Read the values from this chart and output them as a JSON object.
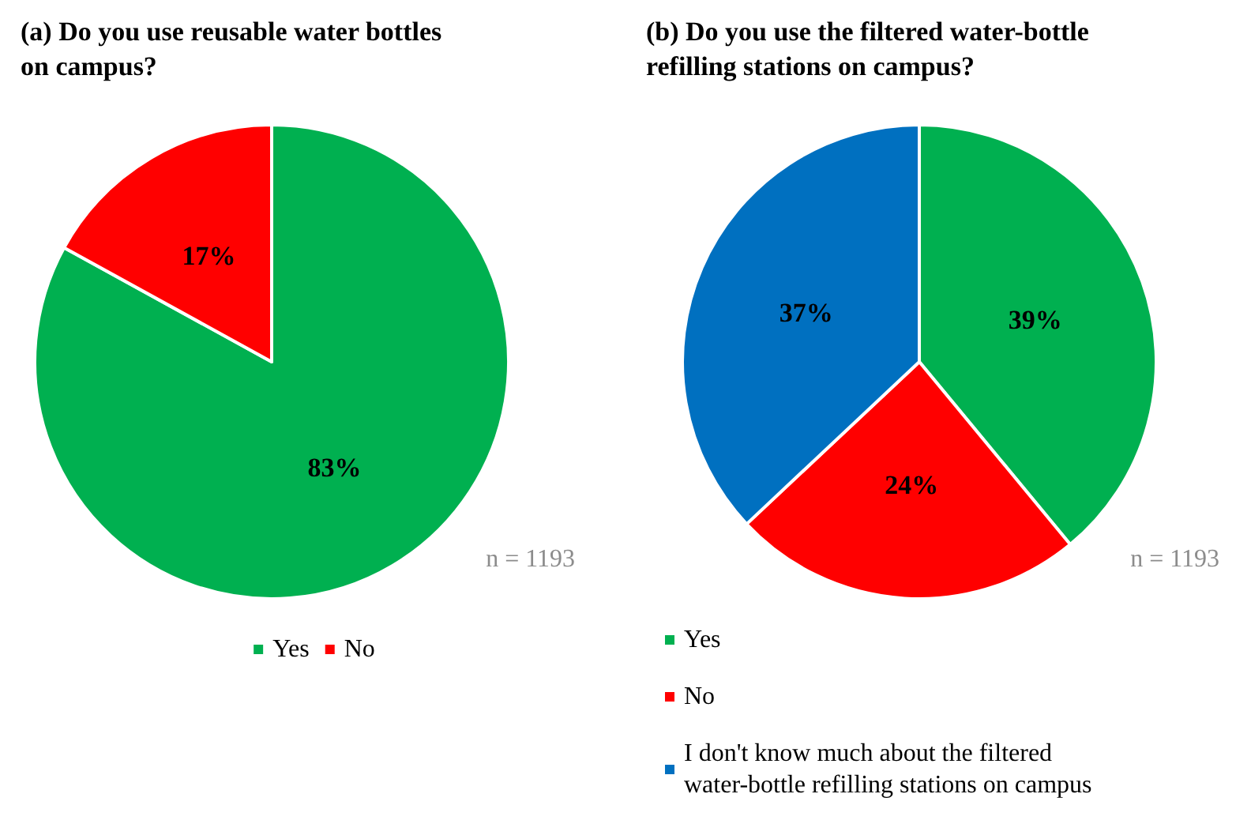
{
  "chart_data": [
    {
      "type": "pie",
      "title": "(a) Do you use reusable water bottles on campus?",
      "categories": [
        "Yes",
        "No"
      ],
      "values": [
        83,
        17
      ],
      "colors": [
        "#00b050",
        "#ff0000"
      ],
      "value_labels": [
        "83%",
        "17%"
      ],
      "legend": "bottom",
      "annotations": [
        "n = 1193"
      ]
    },
    {
      "type": "pie",
      "title": "(b) Do you use the filtered water-bottle refilling stations on campus?",
      "categories": [
        "Yes",
        "No",
        "I don't know much about the filtered water-bottle refilling stations on campus"
      ],
      "values": [
        39,
        24,
        37
      ],
      "colors": [
        "#00b050",
        "#ff0000",
        "#0070c0"
      ],
      "value_labels": [
        "39%",
        "24%",
        "37%"
      ],
      "legend": "bottom left",
      "annotations": [
        "n = 1193"
      ]
    }
  ]
}
